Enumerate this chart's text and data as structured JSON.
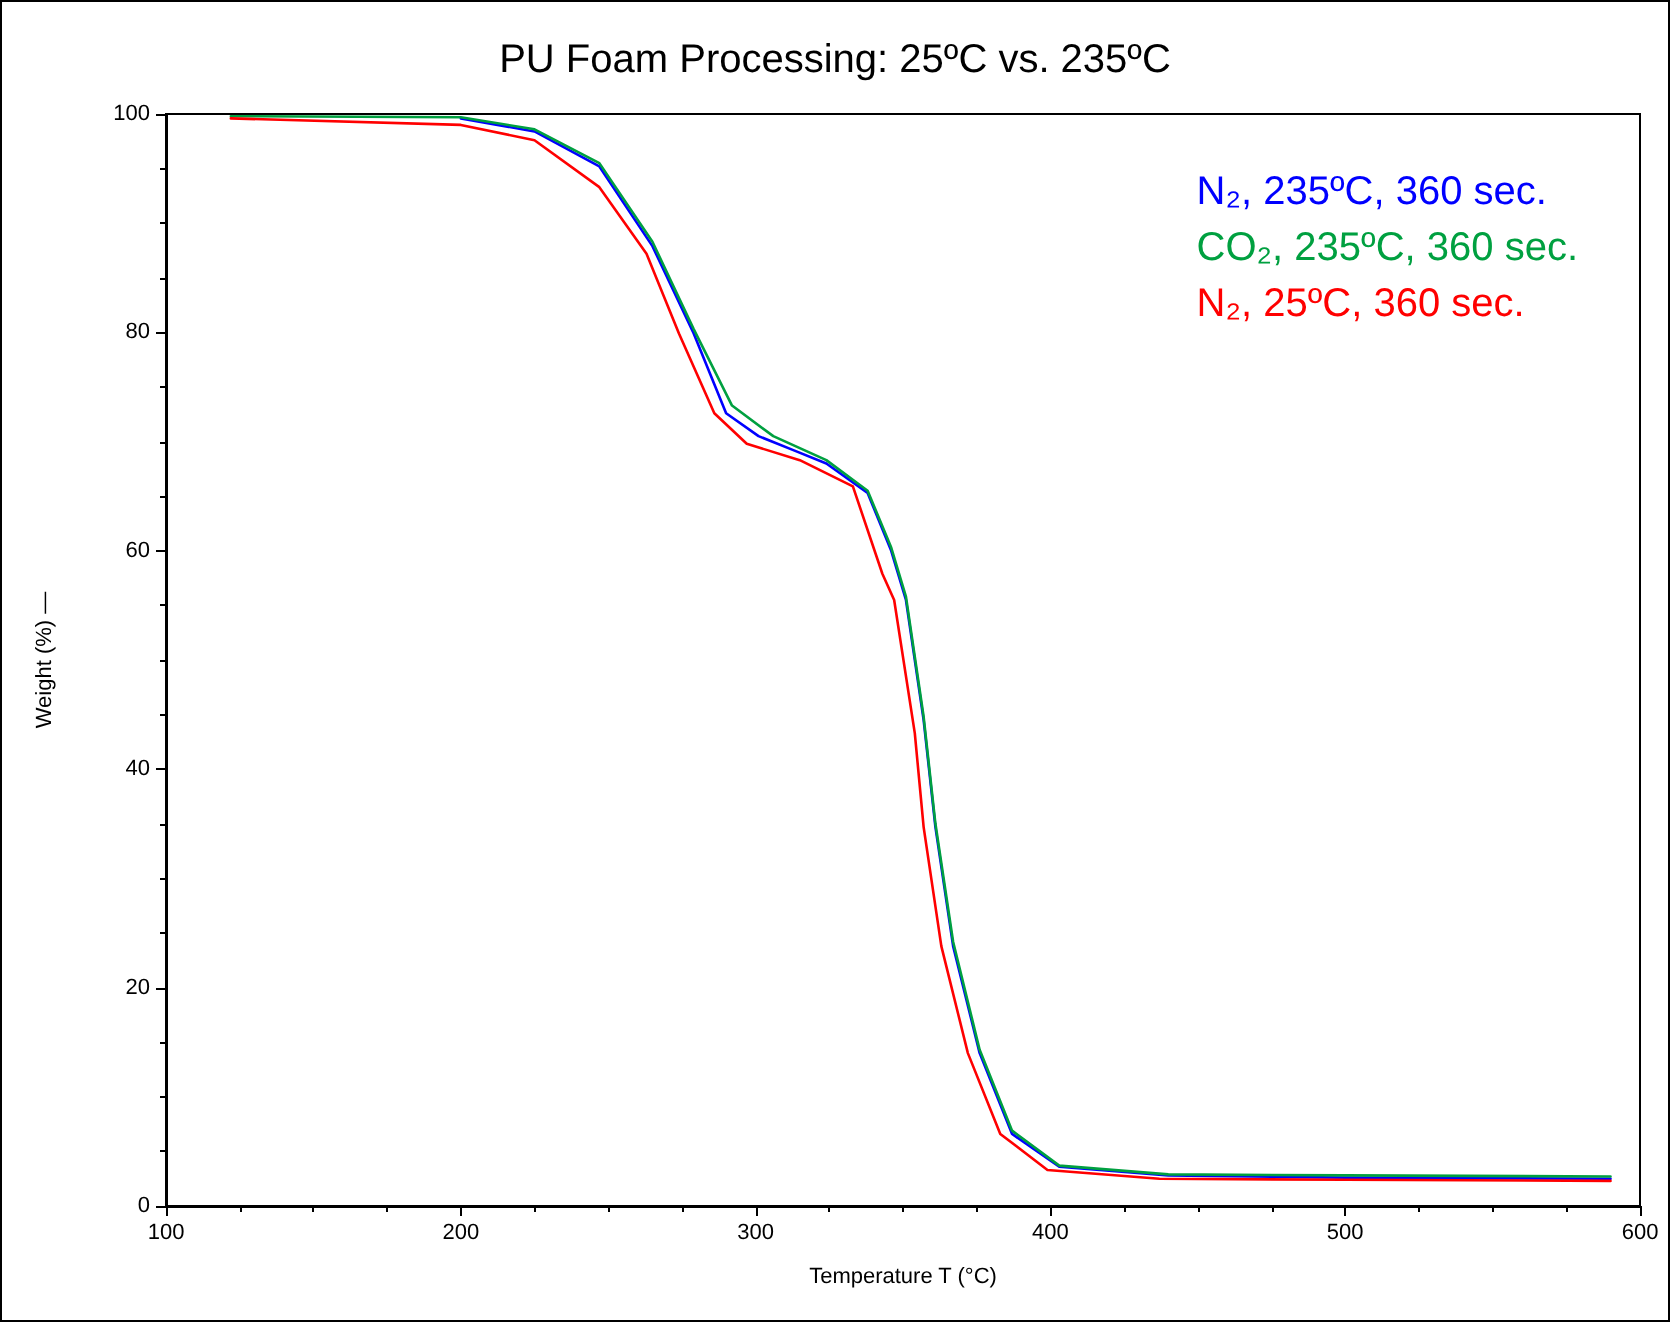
{
  "chart_data": {
    "type": "line",
    "title": "PU Foam Processing: 25ºC vs. 235ºC",
    "xlabel": "Temperature T (°C)",
    "ylabel": "Weight (%) —",
    "xlim": [
      100,
      600
    ],
    "xticks": [
      100,
      200,
      300,
      400,
      500,
      600
    ],
    "ylim": [
      0,
      100
    ],
    "yticks": [
      0,
      20,
      40,
      60,
      80,
      100
    ],
    "grid": false,
    "legend": "top right",
    "marker": "none",
    "line_style": "solid",
    "series": [
      {
        "name": "N₂, 235ºC, 360 sec.",
        "color": "#0000ff",
        "x": [
          200,
          225,
          247,
          265,
          279,
          290,
          301,
          313,
          324,
          338,
          346,
          351,
          357,
          361,
          367,
          376,
          387,
          403,
          440,
          500,
          590
        ],
        "values": [
          99.6,
          98.4,
          95.2,
          87.9,
          79.9,
          72.6,
          70.5,
          69.2,
          68,
          65.3,
          60,
          55.5,
          44.5,
          34.7,
          23.8,
          14,
          6.6,
          3.6,
          2.8,
          2.6,
          2.5
        ]
      },
      {
        "name": "CO₂, 235ºC, 360 sec.",
        "color": "#00a040",
        "x": [
          122,
          200,
          225,
          247,
          265,
          279,
          292,
          306,
          324,
          338,
          346,
          351,
          357,
          361,
          367,
          376,
          387,
          403,
          440,
          500,
          590
        ],
        "values": [
          99.8,
          99.7,
          98.6,
          95.5,
          88.3,
          80.3,
          73.3,
          70.5,
          68.3,
          65.5,
          60.3,
          55.8,
          44.8,
          35,
          24.2,
          14.3,
          6.9,
          3.7,
          2.9,
          2.8,
          2.7
        ]
      },
      {
        "name": "N₂, 25ºC, 360 sec.",
        "color": "#ff0000",
        "x": [
          122,
          200,
          225,
          247,
          263,
          274,
          286,
          297,
          315,
          333,
          343,
          347,
          354,
          357,
          363,
          372,
          383,
          399,
          437,
          500,
          590
        ],
        "values": [
          99.6,
          99,
          97.6,
          93.3,
          87.2,
          79.9,
          72.6,
          69.8,
          68.3,
          65.9,
          57.9,
          55.5,
          43.3,
          34.7,
          23.8,
          14,
          6.6,
          3.3,
          2.5,
          2.4,
          2.3
        ]
      }
    ]
  }
}
